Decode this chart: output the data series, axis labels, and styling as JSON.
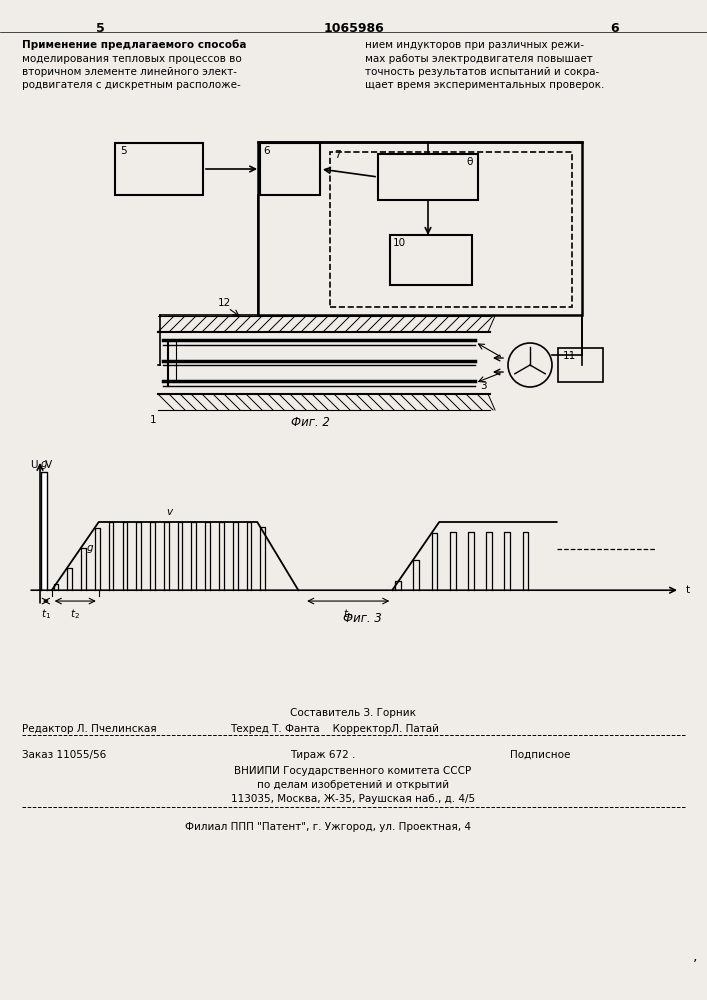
{
  "page_color": "#f0ede8",
  "header_num_left": "5",
  "header_num_center": "1065986",
  "header_num_right": "6",
  "left_text_lines": [
    "Применение предлагаемого способа",
    "моделирования тепловых процессов во",
    "вторичном элементе линейного элект-",
    "родвигателя с дискретным расположе-"
  ],
  "right_text_lines": [
    "нием индукторов при различных режи-",
    "мах работы электродвигателя повышает",
    "точность результатов испытаний и сокра-",
    "щает время экспериментальных проверок."
  ],
  "fig2_label": "Фиг. 2",
  "fig3_label": "Фиг. 3",
  "editor_line": "Редактор Л. Пчелинская",
  "sostavitel_line": "Составитель З. Горник",
  "tehred_korrektor_line": "Техред Т. Фанта    КорректорЛ. Патай",
  "zakaz_line": "Заказ 11055/56",
  "tirazh_line": "Тираж 672 .",
  "podpisnoe_line": "Подписное",
  "vnipi_lines": [
    "ВНИИПИ Государственного комитета СССР",
    "по делам изобретений и открытий",
    "113035, Москва, Ж-35, Раушская наб., д. 4/5"
  ],
  "filial_line": "Филиал ППП \"Патент\", г. Ужгород, ул. Проектная, 4"
}
